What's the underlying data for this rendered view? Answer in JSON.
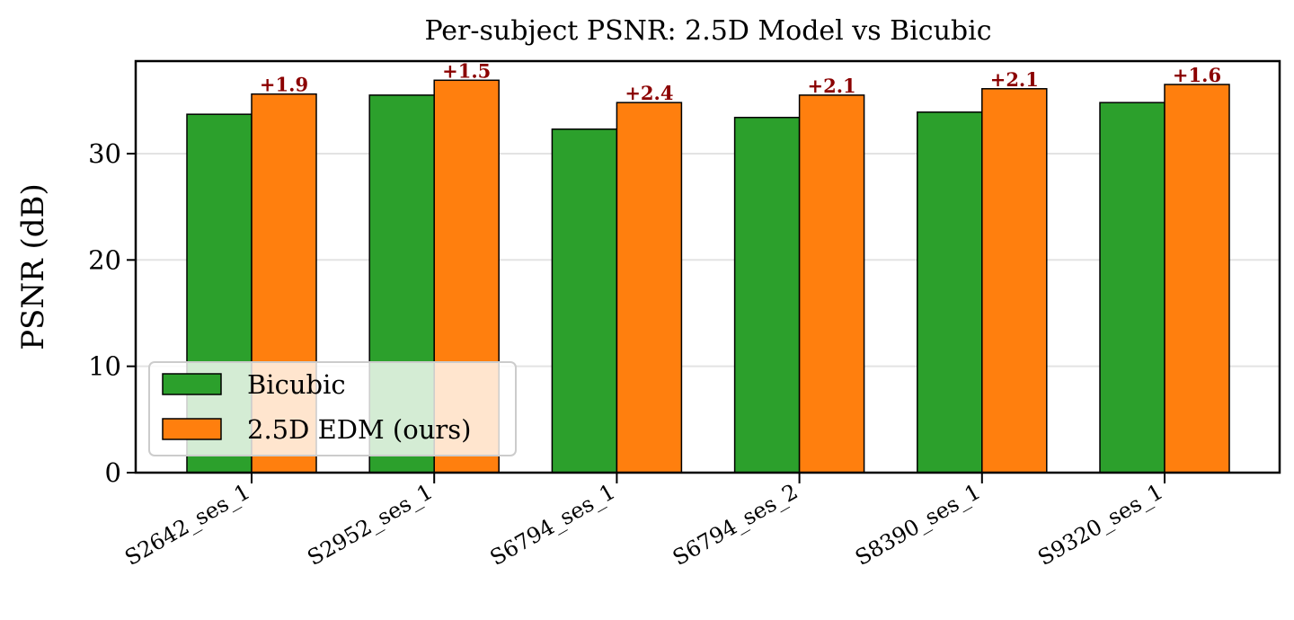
{
  "chart_data": {
    "type": "bar",
    "title": "Per-subject PSNR: 2.5D Model vs Bicubic",
    "xlabel": "",
    "ylabel": "PSNR (dB)",
    "categories": [
      "S2642_ses_1",
      "S2952_ses_1",
      "S6794_ses_1",
      "S6794_ses_2",
      "S8390_ses_1",
      "S9320_ses_1"
    ],
    "series": [
      {
        "name": "Bicubic",
        "color": "#2ca02c",
        "values": [
          33.7,
          35.5,
          32.3,
          33.4,
          33.9,
          34.8
        ]
      },
      {
        "name": "2.5D EDM (ours)",
        "color": "#ff7f0e",
        "values": [
          35.6,
          36.9,
          34.8,
          35.5,
          36.1,
          36.5
        ]
      }
    ],
    "annotations": [
      "+1.9",
      "+1.5",
      "+2.4",
      "+2.1",
      "+2.1",
      "+1.6"
    ],
    "annotation_color": "#8b0000",
    "ylim": [
      0,
      38.7
    ],
    "yticks": [
      0,
      10,
      20,
      30
    ],
    "grid": "y",
    "legend": "lower-left"
  }
}
